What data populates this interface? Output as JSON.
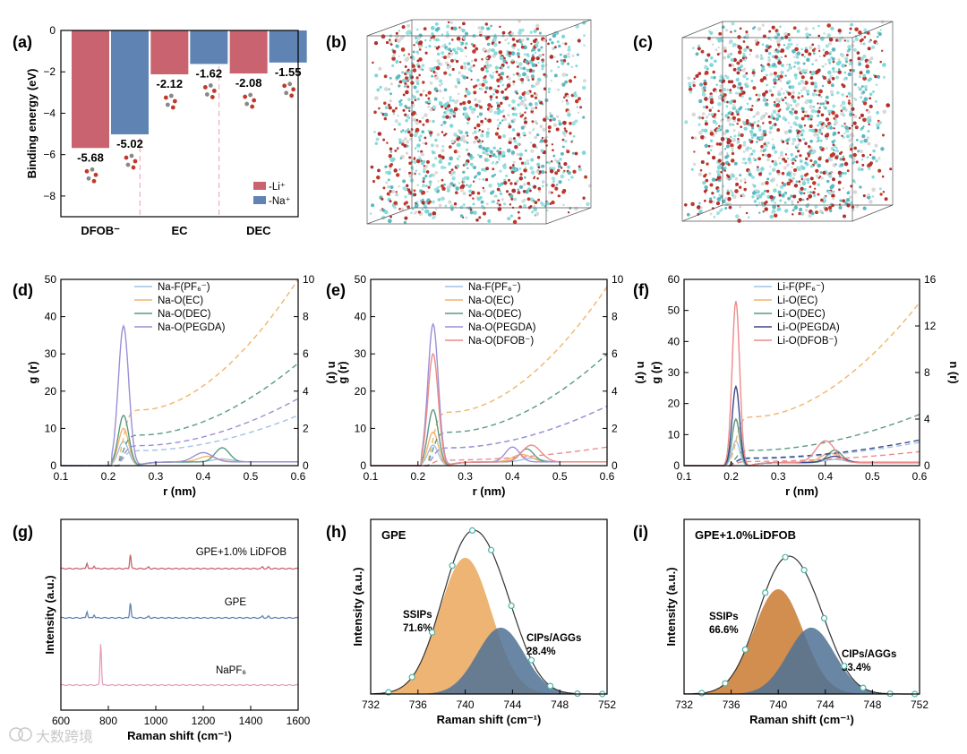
{
  "panel_labels": {
    "a": "(a)",
    "b": "(b)",
    "c": "(c)",
    "d": "(d)",
    "e": "(e)",
    "f": "(f)",
    "g": "(g)",
    "h": "(h)",
    "i": "(i)"
  },
  "watermark": "大数跨境",
  "chart_data": [
    {
      "id": "a",
      "type": "bar",
      "title": "",
      "xlabel": "",
      "ylabel": "Binding energy (eV)",
      "ylim": [
        -9,
        0
      ],
      "yticks": [
        "0",
        "−2",
        "−4",
        "−6",
        "−8"
      ],
      "categories": [
        "DFOB⁻",
        "EC",
        "DEC"
      ],
      "series": [
        {
          "name": "-Li⁺",
          "values": [
            -5.68,
            -2.12,
            -2.08
          ],
          "color": "#c8636f"
        },
        {
          "name": "-Na⁺",
          "values": [
            -5.02,
            -1.62,
            -1.55
          ],
          "color": "#5f83b3"
        }
      ],
      "data_labels": [
        "-5.68",
        "-5.02",
        "-2.12",
        "-1.62",
        "-2.08",
        "-1.55"
      ],
      "legend": [
        "-Li⁺",
        "-Na⁺"
      ],
      "legend_position": "bottom-right"
    },
    {
      "id": "d",
      "type": "line",
      "xlabel": "r (nm)",
      "ylabel": "g (r)",
      "ylabel_right": "n (r)",
      "xlim": [
        0.1,
        0.6
      ],
      "ylim": [
        0,
        50
      ],
      "ylim_right": [
        0,
        10
      ],
      "xticks": [
        "0.1",
        "0.2",
        "0.3",
        "0.4",
        "0.5",
        "0.6"
      ],
      "yticks": [
        "0",
        "10",
        "20",
        "30",
        "40",
        "50"
      ],
      "yticks_right": [
        "0",
        "2",
        "4",
        "6",
        "8",
        "10"
      ],
      "legend_position": "top-center",
      "series": [
        {
          "name": "Na-F(PF₆⁻)",
          "color": "#9fc3e6",
          "peaks": [
            [
              0.232,
              6.5,
              0.011
            ],
            [
              0.44,
              0.8,
              0.02
            ]
          ],
          "n_final": 2.7
        },
        {
          "name": "Na-O(EC)",
          "color": "#f2b46b",
          "peaks": [
            [
              0.232,
              10,
              0.011
            ],
            [
              0.41,
              1.5,
              0.02
            ]
          ],
          "n_final": 10
        },
        {
          "name": "Na-O(DEC)",
          "color": "#5a9a82",
          "peaks": [
            [
              0.232,
              13.5,
              0.011
            ],
            [
              0.44,
              3.8,
              0.015
            ]
          ],
          "n_final": 5.5
        },
        {
          "name": "Na-O(PEGDA)",
          "color": "#9b8fd6",
          "peaks": [
            [
              0.232,
              37.5,
              0.011
            ],
            [
              0.4,
              2.5,
              0.02
            ]
          ],
          "n_final": 3.6
        }
      ]
    },
    {
      "id": "e",
      "type": "line",
      "xlabel": "r (nm)",
      "ylabel": "g (r)",
      "ylabel_right": "n (r)",
      "xlim": [
        0.1,
        0.6
      ],
      "ylim": [
        0,
        50
      ],
      "ylim_right": [
        0,
        10
      ],
      "xticks": [
        "0.1",
        "0.2",
        "0.3",
        "0.4",
        "0.5",
        "0.6"
      ],
      "yticks": [
        "0",
        "10",
        "20",
        "30",
        "40",
        "50"
      ],
      "yticks_right": [
        "0",
        "2",
        "4",
        "6",
        "8",
        "10"
      ],
      "legend_position": "top-center",
      "series": [
        {
          "name": "Na-F(PF₆⁻)",
          "color": "#9fc3e6",
          "peaks": [
            [
              0.232,
              5.5,
              0.011
            ],
            [
              0.44,
              1.0,
              0.02
            ]
          ],
          "n_final": 3.2
        },
        {
          "name": "Na-O(EC)",
          "color": "#f2b46b",
          "peaks": [
            [
              0.232,
              9,
              0.011
            ],
            [
              0.42,
              2.0,
              0.02
            ]
          ],
          "n_final": 9.6
        },
        {
          "name": "Na-O(DEC)",
          "color": "#5a9a82",
          "peaks": [
            [
              0.232,
              15,
              0.011
            ],
            [
              0.43,
              3.5,
              0.015
            ]
          ],
          "n_final": 6.0
        },
        {
          "name": "Na-O(PEGDA)",
          "color": "#9b8fd6",
          "peaks": [
            [
              0.232,
              38,
              0.011
            ],
            [
              0.4,
              4.0,
              0.015
            ]
          ],
          "n_final": 3.2
        },
        {
          "name": "Na-O(DFOB⁻)",
          "color": "#ee8a8a",
          "peaks": [
            [
              0.232,
              30,
              0.011
            ],
            [
              0.44,
              4.5,
              0.02
            ]
          ],
          "n_final": 1.0
        }
      ]
    },
    {
      "id": "f",
      "type": "line",
      "xlabel": "r (nm)",
      "ylabel": "g (r)",
      "ylabel_right": "n (r)",
      "xlim": [
        0.1,
        0.6
      ],
      "ylim": [
        0,
        60
      ],
      "ylim_right": [
        0,
        16
      ],
      "xticks": [
        "0.1",
        "0.2",
        "0.3",
        "0.4",
        "0.5",
        "0.6"
      ],
      "yticks": [
        "0",
        "10",
        "20",
        "30",
        "40",
        "50",
        "60"
      ],
      "yticks_right": [
        "0",
        "4",
        "8",
        "12",
        "16"
      ],
      "legend_position": "top-center",
      "series": [
        {
          "name": "Li-F(PF₆⁻)",
          "color": "#9fc3e6",
          "peaks": [
            [
              0.21,
              8,
              0.008
            ],
            [
              0.42,
              1.0,
              0.02
            ]
          ],
          "n_final": 2.0
        },
        {
          "name": "Li-O(EC)",
          "color": "#f2b46b",
          "peaks": [
            [
              0.21,
              15,
              0.008
            ],
            [
              0.41,
              3.0,
              0.02
            ]
          ],
          "n_final": 14
        },
        {
          "name": "Li-O(DEC)",
          "color": "#5a9a82",
          "peaks": [
            [
              0.21,
              15,
              0.008
            ],
            [
              0.42,
              4.0,
              0.015
            ]
          ],
          "n_final": 4.4
        },
        {
          "name": "Li-O(PEGDA)",
          "color": "#3a4a8c",
          "peaks": [
            [
              0.21,
              25.5,
              0.008
            ],
            [
              0.42,
              2.0,
              0.02
            ]
          ],
          "n_final": 2.2
        },
        {
          "name": "Li-O(DFOB⁻)",
          "color": "#ee8a8a",
          "peaks": [
            [
              0.21,
              53,
              0.008
            ],
            [
              0.4,
              7.0,
              0.02
            ]
          ],
          "n_final": 1.2
        }
      ]
    },
    {
      "id": "g",
      "type": "line",
      "xlabel": "Raman shift (cm⁻¹)",
      "ylabel": "Intensity (a.u.)",
      "xlim": [
        600,
        1600
      ],
      "xticks": [
        "600",
        "800",
        "1000",
        "1200",
        "1400",
        "1600"
      ],
      "series": [
        {
          "name": "GPE+1.0% LiDFOB",
          "color": "#c8636f",
          "peaks": [
            [
              710,
              0.35
            ],
            [
              740,
              0.18
            ],
            [
              893,
              0.9
            ],
            [
              970,
              0.1
            ],
            [
              1450,
              0.12
            ],
            [
              1475,
              0.1
            ]
          ]
        },
        {
          "name": "GPE",
          "color": "#5f83b3",
          "peaks": [
            [
              710,
              0.4
            ],
            [
              740,
              0.2
            ],
            [
              893,
              0.95
            ],
            [
              970,
              0.1
            ],
            [
              1450,
              0.12
            ],
            [
              1475,
              0.1
            ]
          ]
        },
        {
          "name": "NaPF₆",
          "color": "#e5a0be",
          "peaks": [
            [
              768,
              2.6
            ]
          ]
        }
      ]
    },
    {
      "id": "h",
      "type": "area",
      "title": "GPE",
      "xlabel": "Raman shift (cm⁻¹)",
      "ylabel": "Intensity (a.u.)",
      "xlim": [
        732,
        752
      ],
      "xticks": [
        "732",
        "736",
        "740",
        "744",
        "748",
        "752"
      ],
      "series": [
        {
          "name": "SSIPs",
          "label": "SSIPs\n71.6%",
          "center": 740.0,
          "height": 0.78,
          "sigma": 2.2,
          "color": "#eaa75a"
        },
        {
          "name": "CIPs/AGGs",
          "label": "CIPs/AGGs\n28.4%",
          "center": 743.0,
          "height": 0.38,
          "sigma": 2.0,
          "color": "#4f7295"
        }
      ],
      "fit_markers_x": [
        733.5,
        735.5,
        737.2,
        738.9,
        740.6,
        742.2,
        743.9,
        745.6,
        747.2,
        749.5,
        751.6
      ]
    },
    {
      "id": "i",
      "type": "area",
      "title": "GPE+1.0%LiDFOB",
      "xlabel": "Raman shift (cm⁻¹)",
      "ylabel": "Intensity (a.u.)",
      "xlim": [
        732,
        752
      ],
      "xticks": [
        "732",
        "736",
        "740",
        "744",
        "748",
        "752"
      ],
      "series": [
        {
          "name": "SSIPs",
          "label": "SSIPs\n66.6%",
          "center": 740.0,
          "height": 0.6,
          "sigma": 2.1,
          "color": "#c97a30"
        },
        {
          "name": "CIPs/AGGs",
          "label": "CIPs/AGGs\n33.4%",
          "center": 742.8,
          "height": 0.38,
          "sigma": 2.0,
          "color": "#4f7295"
        }
      ],
      "fit_markers_x": [
        733.5,
        735.5,
        737.2,
        738.9,
        740.6,
        742.2,
        743.9,
        745.6,
        747.2,
        749.5,
        751.6
      ]
    }
  ]
}
